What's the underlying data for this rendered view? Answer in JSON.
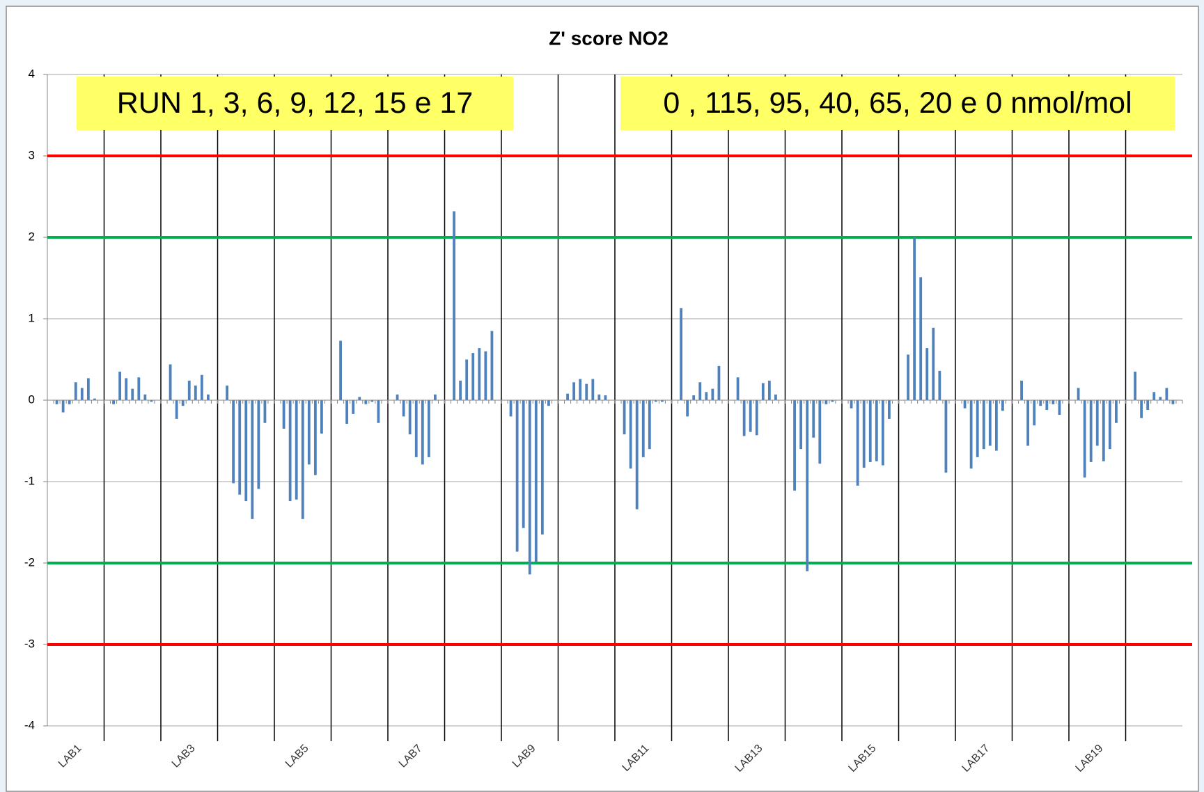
{
  "chart_data": {
    "type": "bar",
    "title": "Z' score  NO2",
    "annotations": [
      "RUN 1, 3, 6, 9, 12, 15 e 17",
      "0 , 115, 95, 40, 65, 20 e 0 nmol/mol"
    ],
    "categories": [
      "LAB1",
      null,
      "LAB3",
      null,
      "LAB5",
      null,
      "LAB7",
      null,
      "LAB9",
      null,
      "LAB11",
      null,
      "LAB13",
      null,
      "LAB15",
      null,
      "LAB17",
      null,
      "LAB19",
      null
    ],
    "color": "#4f81bd",
    "series": [
      {
        "values": [
          -0.05,
          -0.05,
          0.44,
          0.18,
          -0.35,
          0.73,
          0.07,
          2.32,
          -0.2,
          0.08,
          -0.42,
          1.13,
          0.28,
          -1.11,
          -0.1,
          0.56,
          -0.1,
          0.24,
          0.15,
          0.35
        ]
      },
      {
        "values": [
          -0.15,
          0.35,
          -0.23,
          -1.02,
          -1.24,
          -0.29,
          -0.2,
          0.24,
          -1.86,
          0.22,
          -0.84,
          -0.2,
          -0.44,
          -0.6,
          -1.05,
          2.0,
          -0.84,
          -0.56,
          -0.95,
          -0.22
        ]
      },
      {
        "values": [
          -0.05,
          0.27,
          -0.07,
          -1.16,
          -1.22,
          -0.17,
          -0.42,
          0.5,
          -1.57,
          0.26,
          -1.34,
          0.06,
          -0.39,
          -2.1,
          -0.83,
          1.51,
          -0.7,
          -0.31,
          -0.76,
          -0.12
        ]
      },
      {
        "values": [
          0.22,
          0.14,
          0.24,
          -1.24,
          -1.46,
          0.04,
          -0.7,
          0.58,
          -2.14,
          0.2,
          -0.7,
          0.22,
          -0.43,
          -0.46,
          -0.76,
          0.64,
          -0.6,
          -0.07,
          -0.56,
          0.1
        ]
      },
      {
        "values": [
          0.15,
          0.28,
          0.18,
          -1.46,
          -0.79,
          -0.05,
          -0.79,
          0.64,
          -1.99,
          0.26,
          -0.6,
          0.1,
          0.21,
          -0.78,
          -0.75,
          0.89,
          -0.56,
          -0.12,
          -0.75,
          0.04
        ]
      },
      {
        "values": [
          0.27,
          0.07,
          0.31,
          -1.09,
          -0.92,
          -0.02,
          -0.7,
          0.6,
          -1.65,
          0.07,
          -0.02,
          0.14,
          0.24,
          -0.05,
          -0.8,
          0.36,
          -0.62,
          -0.05,
          -0.6,
          0.15
        ]
      },
      {
        "values": [
          0.02,
          -0.02,
          0.07,
          -0.28,
          -0.41,
          -0.28,
          0.07,
          0.85,
          -0.07,
          0.06,
          -0.02,
          0.42,
          0.07,
          -0.02,
          -0.23,
          -0.89,
          -0.13,
          -0.18,
          -0.28,
          -0.05
        ]
      }
    ],
    "ylim": [
      -4,
      4
    ],
    "yticks": [
      -4,
      -3,
      -2,
      -1,
      0,
      1,
      2,
      3,
      4
    ],
    "grid": true,
    "reference_lines": [
      {
        "value": 3,
        "color": "#ff0000"
      },
      {
        "value": 2,
        "color": "#00b050"
      },
      {
        "value": -2,
        "color": "#00b050"
      },
      {
        "value": -3,
        "color": "#ff0000"
      }
    ]
  }
}
